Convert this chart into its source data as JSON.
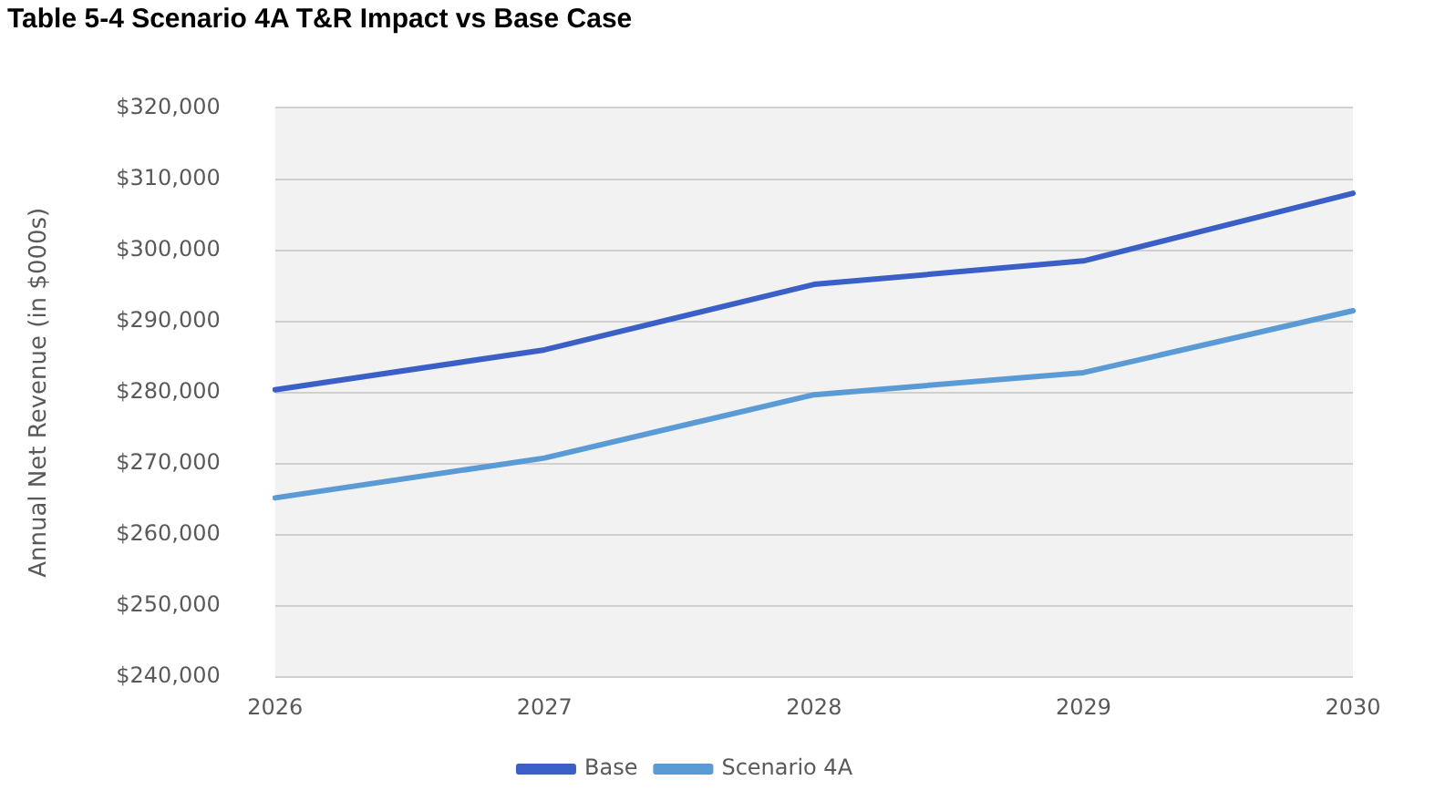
{
  "chart_data": {
    "type": "line",
    "title": "Table 5-4 Scenario 4A T&R Impact vs Base Case",
    "ylabel": "Annual Net Revenue (in $000s)",
    "categories": [
      "2026",
      "2027",
      "2028",
      "2029",
      "2030"
    ],
    "series": [
      {
        "name": "Base",
        "color": "#3a5fc7",
        "values": [
          280400,
          286000,
          295200,
          298500,
          308000
        ]
      },
      {
        "name": "Scenario 4A",
        "color": "#5b9bd5",
        "values": [
          265200,
          270800,
          279700,
          282800,
          291500
        ]
      }
    ],
    "ylim": [
      240000,
      320000
    ],
    "yticks": [
      {
        "value": 240000,
        "label": "$240,000"
      },
      {
        "value": 250000,
        "label": "$250,000"
      },
      {
        "value": 260000,
        "label": "$260,000"
      },
      {
        "value": 270000,
        "label": "$270,000"
      },
      {
        "value": 280000,
        "label": "$280,000"
      },
      {
        "value": 290000,
        "label": "$290,000"
      },
      {
        "value": 300000,
        "label": "$300,000"
      },
      {
        "value": 310000,
        "label": "$310,000"
      },
      {
        "value": 320000,
        "label": "$320,000"
      }
    ],
    "grid": "y",
    "legend": "bottom",
    "marker": "none",
    "line_style": "solid"
  }
}
